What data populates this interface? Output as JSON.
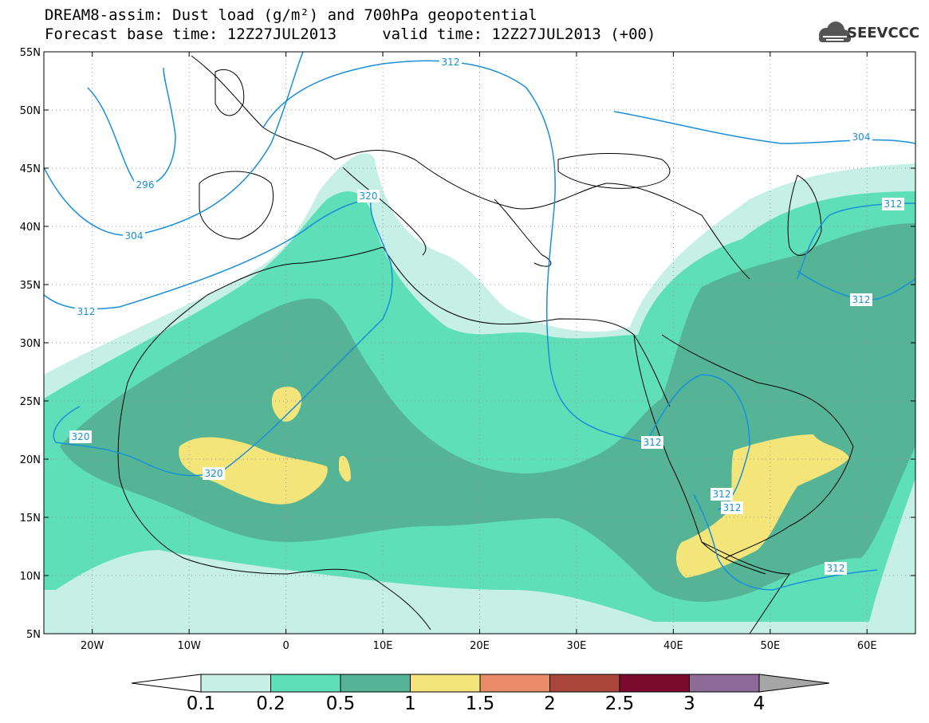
{
  "header": {
    "title_line1": "DREAM8-assim: Dust load (g/m²) and 700hPa geopotential",
    "title_line2": "Forecast base time: 12Z27JUL2013     valid time: 12Z27JUL2013 (+00)"
  },
  "logo": {
    "text": "SEEVCCC",
    "icon": "cloud-logo-icon"
  },
  "map": {
    "lat_labels": [
      "55N",
      "50N",
      "45N",
      "40N",
      "35N",
      "30N",
      "25N",
      "20N",
      "15N",
      "10N",
      "5N"
    ],
    "lon_labels": [
      "20W",
      "10W",
      "0",
      "10E",
      "20E",
      "30E",
      "40E",
      "50E",
      "60E"
    ],
    "lat_range": [
      5,
      55
    ],
    "lon_range": [
      -25,
      65
    ],
    "grid": "dotted",
    "contour_labels": [
      "312",
      "304",
      "296",
      "304",
      "320",
      "312",
      "320",
      "320",
      "312",
      "312",
      "312",
      "312",
      "312",
      "312"
    ],
    "colors": {
      "c01": "#c6f0e6",
      "c02": "#5fdfb8",
      "c05": "#55b496",
      "c1": "#f4e57a",
      "c15": "#e88b67",
      "c2": "#a9463c",
      "c25": "#7a0a2e",
      "c3": "#8e6a99",
      "c4": "#a6a6a6",
      "contour": "#1a8fd8"
    }
  },
  "colorbar": {
    "labels": [
      "0.1",
      "0.2",
      "0.5",
      "1",
      "1.5",
      "2",
      "2.5",
      "3",
      "4"
    ]
  }
}
